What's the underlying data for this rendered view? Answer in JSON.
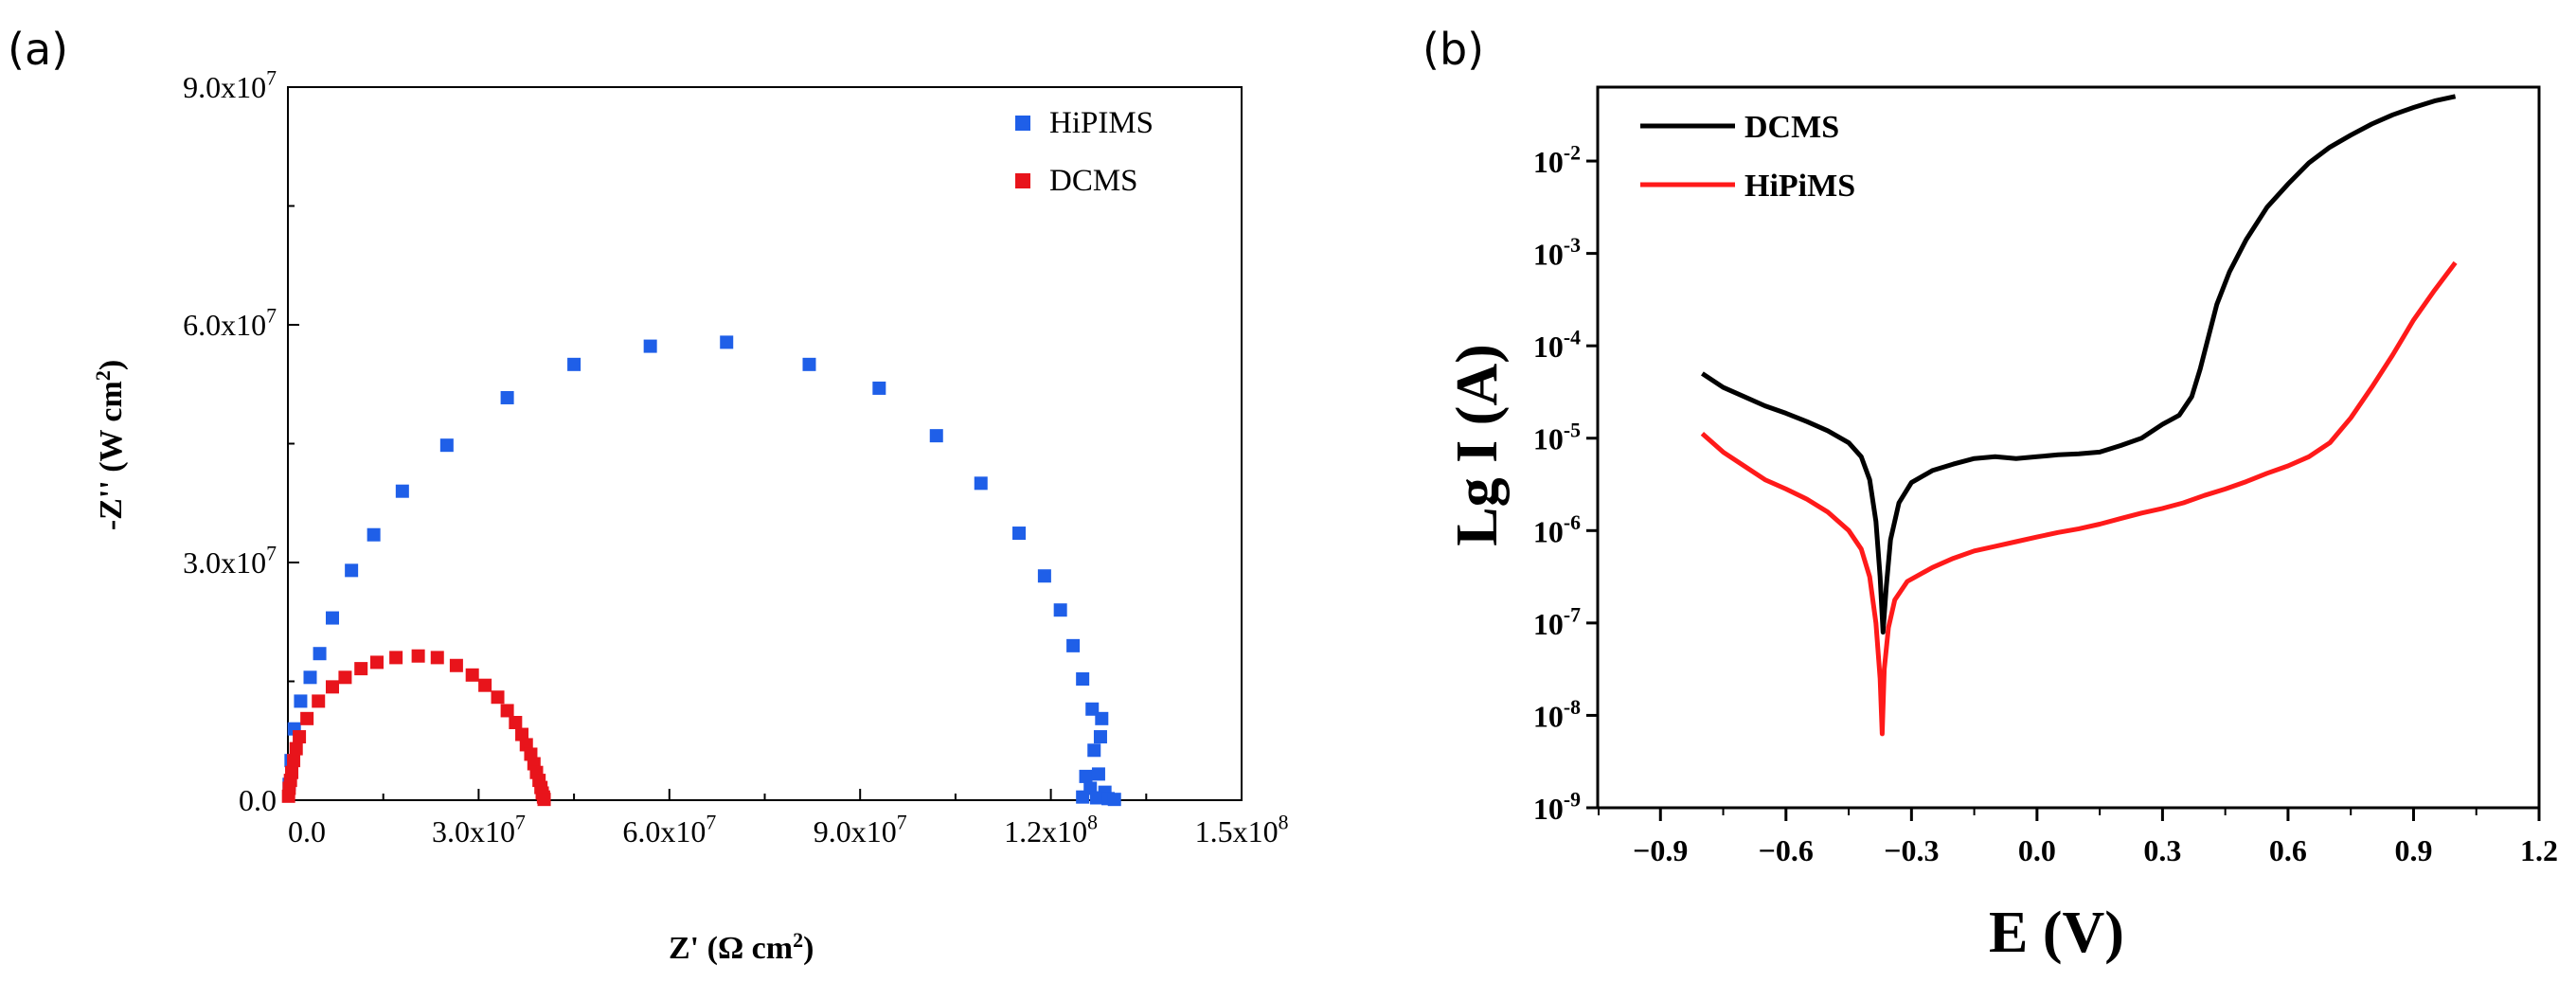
{
  "figure": {
    "panel_a_label": "(a)",
    "panel_b_label": "(b)"
  },
  "chart_data": [
    {
      "type": "scatter",
      "panel": "(a)",
      "xlabel": "Z' (Ω cm²)",
      "ylabel": "-Z'' (W cm²)",
      "xlim": [
        0,
        150000000
      ],
      "ylim": [
        0,
        90000000
      ],
      "x_ticks": [
        "0.0",
        "3.0x10^7",
        "6.0x10^7",
        "9.0x10^7",
        "1.2x10^8",
        "1.5x10^8"
      ],
      "y_ticks": [
        "0.0",
        "3.0x10^7",
        "6.0x10^7",
        "9.0x10^7"
      ],
      "legend_position": "top-right",
      "grid": false,
      "series": [
        {
          "name": "HiPIMS",
          "color": "#1f5fe8",
          "marker": "square",
          "points": [
            [
              200000.0,
              2000000.0
            ],
            [
              500000.0,
              5000000.0
            ],
            [
              1000000.0,
              9000000.0
            ],
            [
              2000000.0,
              12500000.0
            ],
            [
              3500000.0,
              15500000.0
            ],
            [
              5000000.0,
              18500000.0
            ],
            [
              7000000.0,
              23000000.0
            ],
            [
              10000000.0,
              29000000.0
            ],
            [
              13500000.0,
              33500000.0
            ],
            [
              18000000.0,
              39000000.0
            ],
            [
              25000000.0,
              44800000.0
            ],
            [
              34500000.0,
              50800000.0
            ],
            [
              45000000.0,
              55000000.0
            ],
            [
              57000000.0,
              57300000.0
            ],
            [
              69000000.0,
              57800000.0
            ],
            [
              82000000.0,
              55000000.0
            ],
            [
              93000000.0,
              52000000.0
            ],
            [
              102000000.0,
              46000000.0
            ],
            [
              109000000.0,
              40000000.0
            ],
            [
              115000000.0,
              33700000.0
            ],
            [
              119000000.0,
              28300000.0
            ],
            [
              121500000.0,
              24000000.0
            ],
            [
              123500000.0,
              19500000.0
            ],
            [
              125000000.0,
              15300000.0
            ],
            [
              126500000.0,
              11500000.0
            ],
            [
              128000000.0,
              10300000.0
            ],
            [
              127800000.0,
              8000000.0
            ],
            [
              126800000.0,
              6300000.0
            ],
            [
              125500000.0,
              3000000.0
            ],
            [
              127500000.0,
              3300000.0
            ],
            [
              126200000.0,
              1500000.0
            ],
            [
              128500000.0,
              1000000.0
            ],
            [
              125000000.0,
              400000.0
            ],
            [
              127200000.0,
              300000.0
            ],
            [
              129000000.0,
              200000.0
            ],
            [
              130000000.0,
              100000.0
            ]
          ]
        },
        {
          "name": "DCMS",
          "color": "#e8141b",
          "marker": "square",
          "points": [
            [
              100000.0,
              500000.0
            ],
            [
              200000.0,
              1500000.0
            ],
            [
              400000.0,
              2500000.0
            ],
            [
              600000.0,
              3500000.0
            ],
            [
              900000.0,
              5000000.0
            ],
            [
              1300000.0,
              6500000.0
            ],
            [
              1800000.0,
              8000000.0
            ],
            [
              3000000.0,
              10300000.0
            ],
            [
              4800000.0,
              12500000.0
            ],
            [
              7000000.0,
              14300000.0
            ],
            [
              9000000.0,
              15500000.0
            ],
            [
              11500000.0,
              16600000.0
            ],
            [
              14000000.0,
              17400000.0
            ],
            [
              17000000.0,
              18000000.0
            ],
            [
              20500000.0,
              18200000.0
            ],
            [
              23500000.0,
              18000000.0
            ],
            [
              26500000.0,
              17000000.0
            ],
            [
              29000000.0,
              15800000.0
            ],
            [
              31000000.0,
              14500000.0
            ],
            [
              33000000.0,
              13000000.0
            ],
            [
              34500000.0,
              11300000.0
            ],
            [
              35800000.0,
              9800000.0
            ],
            [
              36800000.0,
              8300000.0
            ],
            [
              37500000.0,
              7000000.0
            ],
            [
              38200000.0,
              5800000.0
            ],
            [
              38700000.0,
              4600000.0
            ],
            [
              39100000.0,
              3500000.0
            ],
            [
              39500000.0,
              2500000.0
            ],
            [
              39800000.0,
              1600000.0
            ],
            [
              40000000.0,
              900000.0
            ],
            [
              40200000.0,
              400000.0
            ],
            [
              40300000.0,
              100000.0
            ]
          ]
        }
      ]
    },
    {
      "type": "line",
      "panel": "(b)",
      "xlabel": "E (V)",
      "ylabel": "Lg I (A)",
      "xlim": [
        -1.05,
        1.2
      ],
      "ylim_log10": [
        -9,
        -1.2
      ],
      "y_scale": "log",
      "x_ticks": [
        "−0.9",
        "−0.6",
        "−0.3",
        "0.0",
        "0.3",
        "0.6",
        "0.9",
        "1.2"
      ],
      "y_ticks": [
        "10^-9",
        "10^-8",
        "10^-7",
        "10^-6",
        "10^-5",
        "10^-4",
        "10^-3",
        "10^-2"
      ],
      "legend_position": "top-left",
      "grid": false,
      "series": [
        {
          "name": "DCMS",
          "color": "#000000",
          "points_log10": [
            [
              -0.8,
              -4.3
            ],
            [
              -0.75,
              -4.45
            ],
            [
              -0.7,
              -4.55
            ],
            [
              -0.65,
              -4.65
            ],
            [
              -0.6,
              -4.73
            ],
            [
              -0.55,
              -4.82
            ],
            [
              -0.5,
              -4.92
            ],
            [
              -0.45,
              -5.05
            ],
            [
              -0.42,
              -5.2
            ],
            [
              -0.4,
              -5.45
            ],
            [
              -0.385,
              -5.9
            ],
            [
              -0.375,
              -6.5
            ],
            [
              -0.368,
              -7.1
            ],
            [
              -0.36,
              -6.6
            ],
            [
              -0.35,
              -6.1
            ],
            [
              -0.33,
              -5.7
            ],
            [
              -0.3,
              -5.48
            ],
            [
              -0.25,
              -5.35
            ],
            [
              -0.2,
              -5.28
            ],
            [
              -0.15,
              -5.22
            ],
            [
              -0.1,
              -5.2
            ],
            [
              -0.05,
              -5.22
            ],
            [
              0.0,
              -5.2
            ],
            [
              0.05,
              -5.18
            ],
            [
              0.1,
              -5.17
            ],
            [
              0.15,
              -5.15
            ],
            [
              0.2,
              -5.08
            ],
            [
              0.25,
              -5.0
            ],
            [
              0.3,
              -4.85
            ],
            [
              0.34,
              -4.75
            ],
            [
              0.37,
              -4.55
            ],
            [
              0.39,
              -4.25
            ],
            [
              0.41,
              -3.9
            ],
            [
              0.43,
              -3.55
            ],
            [
              0.46,
              -3.2
            ],
            [
              0.5,
              -2.85
            ],
            [
              0.55,
              -2.5
            ],
            [
              0.6,
              -2.25
            ],
            [
              0.65,
              -2.02
            ],
            [
              0.7,
              -1.85
            ],
            [
              0.75,
              -1.72
            ],
            [
              0.8,
              -1.6
            ],
            [
              0.85,
              -1.5
            ],
            [
              0.9,
              -1.42
            ],
            [
              0.95,
              -1.35
            ],
            [
              1.0,
              -1.3
            ]
          ]
        },
        {
          "name": "HiPiMS",
          "color": "#ff1a1a",
          "points_log10": [
            [
              -0.8,
              -4.95
            ],
            [
              -0.75,
              -5.15
            ],
            [
              -0.7,
              -5.3
            ],
            [
              -0.65,
              -5.45
            ],
            [
              -0.6,
              -5.55
            ],
            [
              -0.55,
              -5.66
            ],
            [
              -0.5,
              -5.8
            ],
            [
              -0.45,
              -6.0
            ],
            [
              -0.42,
              -6.2
            ],
            [
              -0.4,
              -6.5
            ],
            [
              -0.385,
              -7.0
            ],
            [
              -0.375,
              -7.6
            ],
            [
              -0.37,
              -8.2
            ],
            [
              -0.365,
              -7.5
            ],
            [
              -0.355,
              -7.05
            ],
            [
              -0.34,
              -6.75
            ],
            [
              -0.31,
              -6.55
            ],
            [
              -0.25,
              -6.4
            ],
            [
              -0.2,
              -6.3
            ],
            [
              -0.15,
              -6.22
            ],
            [
              -0.1,
              -6.17
            ],
            [
              -0.05,
              -6.12
            ],
            [
              0.0,
              -6.07
            ],
            [
              0.05,
              -6.02
            ],
            [
              0.1,
              -5.98
            ],
            [
              0.15,
              -5.93
            ],
            [
              0.2,
              -5.87
            ],
            [
              0.25,
              -5.81
            ],
            [
              0.3,
              -5.76
            ],
            [
              0.35,
              -5.7
            ],
            [
              0.4,
              -5.62
            ],
            [
              0.45,
              -5.55
            ],
            [
              0.5,
              -5.47
            ],
            [
              0.55,
              -5.38
            ],
            [
              0.6,
              -5.3
            ],
            [
              0.65,
              -5.2
            ],
            [
              0.7,
              -5.05
            ],
            [
              0.75,
              -4.78
            ],
            [
              0.8,
              -4.45
            ],
            [
              0.85,
              -4.1
            ],
            [
              0.9,
              -3.72
            ],
            [
              0.95,
              -3.4
            ],
            [
              1.0,
              -3.1
            ]
          ]
        }
      ]
    }
  ]
}
